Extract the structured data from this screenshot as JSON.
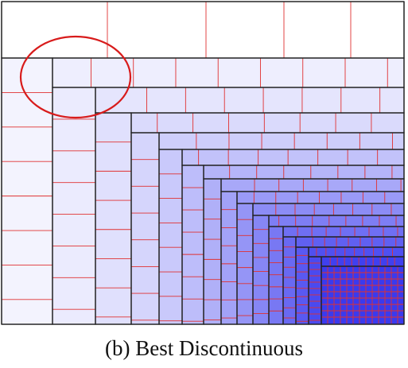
{
  "caption": "(b) Best Discontinuous",
  "colors": {
    "outline": "#222222",
    "divider": "#e03030",
    "highlight_ring": "#d81b1b",
    "light_fill": "#fafaff",
    "deep_fill": "#3a3aee"
  },
  "diagram": {
    "nested_levels": 14,
    "highlight": "ellipse marking a discontinuity between the top band and the first columns"
  }
}
